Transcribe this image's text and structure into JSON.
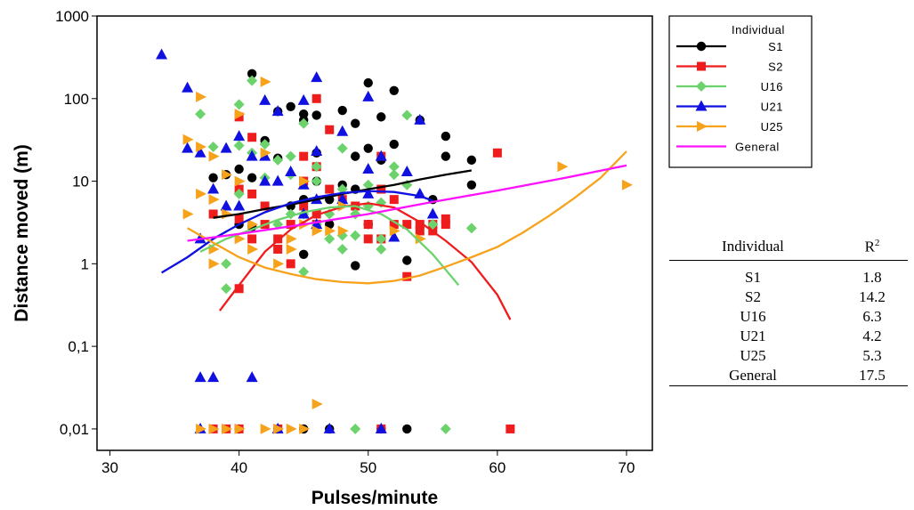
{
  "chart_data": {
    "type": "scatter",
    "xlabel": "Pulses/minute",
    "ylabel": "Distance moved (m)",
    "x_ticks": [
      30,
      40,
      50,
      60,
      70
    ],
    "y_tick_labels": [
      "0,01",
      "0,1",
      "1",
      "10",
      "100",
      "1000"
    ],
    "y_tick_values": [
      0.01,
      0.1,
      1,
      10,
      100,
      1000
    ],
    "xlim": [
      29,
      72
    ],
    "ylim": [
      0.0055,
      1000
    ],
    "y_scale": "log",
    "legend_title": "Individual",
    "legend_placement": "right, outside plot",
    "series": [
      {
        "name": "S1",
        "color": "#000000",
        "marker": "circle",
        "points": [
          [
            38,
            11
          ],
          [
            39,
            12
          ],
          [
            40,
            14
          ],
          [
            40,
            3
          ],
          [
            41,
            200
          ],
          [
            41,
            11
          ],
          [
            41,
            2.8
          ],
          [
            42,
            31
          ],
          [
            43,
            19
          ],
          [
            43,
            70
          ],
          [
            44,
            80
          ],
          [
            44,
            5
          ],
          [
            45,
            65
          ],
          [
            45,
            55
          ],
          [
            45,
            6
          ],
          [
            45,
            1.3
          ],
          [
            46,
            63
          ],
          [
            46,
            22
          ],
          [
            46,
            10
          ],
          [
            47,
            6
          ],
          [
            47,
            3
          ],
          [
            48,
            72
          ],
          [
            48,
            9
          ],
          [
            49,
            50
          ],
          [
            49,
            20
          ],
          [
            49,
            8
          ],
          [
            49,
            0.95
          ],
          [
            50,
            155
          ],
          [
            50,
            25
          ],
          [
            50,
            3
          ],
          [
            51,
            60
          ],
          [
            51,
            18
          ],
          [
            52,
            125
          ],
          [
            52,
            28
          ],
          [
            53,
            1.1
          ],
          [
            54,
            55
          ],
          [
            55,
            6
          ],
          [
            56,
            35
          ],
          [
            56,
            20
          ],
          [
            58,
            18
          ],
          [
            58,
            9
          ],
          [
            40,
            0.01
          ],
          [
            43,
            0.01
          ],
          [
            45,
            0.01
          ],
          [
            47,
            0.01
          ],
          [
            51,
            0.01
          ],
          [
            53,
            0.01
          ]
        ],
        "curve": [
          [
            38,
            3.6
          ],
          [
            40,
            4
          ],
          [
            42,
            4.6
          ],
          [
            44,
            5.2
          ],
          [
            46,
            6
          ],
          [
            48,
            7
          ],
          [
            50,
            8
          ],
          [
            52,
            9
          ],
          [
            54,
            10.5
          ],
          [
            56,
            12
          ],
          [
            58,
            13.5
          ]
        ]
      },
      {
        "name": "S2",
        "color": "#ee1c1c",
        "marker": "square",
        "points": [
          [
            38,
            4
          ],
          [
            40,
            0.5
          ],
          [
            40,
            8
          ],
          [
            40,
            3.5
          ],
          [
            40,
            60
          ],
          [
            41,
            34
          ],
          [
            41,
            7
          ],
          [
            41,
            2
          ],
          [
            42,
            5
          ],
          [
            42,
            3
          ],
          [
            43,
            2
          ],
          [
            43,
            1.5
          ],
          [
            44,
            3
          ],
          [
            44,
            1
          ],
          [
            45,
            10
          ],
          [
            45,
            20
          ],
          [
            45,
            5
          ],
          [
            46,
            15
          ],
          [
            46,
            100
          ],
          [
            46,
            4
          ],
          [
            46,
            3
          ],
          [
            47,
            8
          ],
          [
            47,
            42
          ],
          [
            48,
            6
          ],
          [
            49,
            5
          ],
          [
            50,
            3
          ],
          [
            50,
            2
          ],
          [
            51,
            8
          ],
          [
            51,
            20
          ],
          [
            51,
            2
          ],
          [
            52,
            6
          ],
          [
            52,
            3
          ],
          [
            53,
            3
          ],
          [
            53,
            0.7
          ],
          [
            54,
            3
          ],
          [
            54,
            2.5
          ],
          [
            55,
            3
          ],
          [
            55,
            2.5
          ],
          [
            56,
            3.5
          ],
          [
            56,
            3
          ],
          [
            60,
            22
          ],
          [
            38,
            0.01
          ],
          [
            39,
            0.01
          ],
          [
            40,
            0.01
          ],
          [
            43,
            0.01
          ],
          [
            51,
            0.01
          ],
          [
            61,
            0.01
          ]
        ],
        "curve": [
          [
            38.5,
            0.27
          ],
          [
            40,
            0.55
          ],
          [
            42,
            1.4
          ],
          [
            44,
            2.6
          ],
          [
            46,
            3.9
          ],
          [
            48,
            4.9
          ],
          [
            50,
            5.4
          ],
          [
            52,
            4.8
          ],
          [
            54,
            3.2
          ],
          [
            56,
            1.9
          ],
          [
            58,
            1.05
          ],
          [
            60,
            0.42
          ],
          [
            61,
            0.21
          ]
        ]
      },
      {
        "name": "U16",
        "color": "#6cd36c",
        "marker": "diamond",
        "points": [
          [
            37,
            65
          ],
          [
            38,
            26
          ],
          [
            39,
            1
          ],
          [
            39,
            0.5
          ],
          [
            40,
            85
          ],
          [
            40,
            27
          ],
          [
            40,
            7
          ],
          [
            41,
            22
          ],
          [
            41,
            165
          ],
          [
            42,
            28
          ],
          [
            42,
            11
          ],
          [
            43,
            18
          ],
          [
            43,
            3
          ],
          [
            44,
            20
          ],
          [
            44,
            12
          ],
          [
            44,
            4
          ],
          [
            45,
            50
          ],
          [
            45,
            4
          ],
          [
            45,
            0.8
          ],
          [
            46,
            15
          ],
          [
            46,
            10
          ],
          [
            46,
            3
          ],
          [
            47,
            4
          ],
          [
            47,
            2
          ],
          [
            48,
            25
          ],
          [
            48,
            8
          ],
          [
            48,
            2.2
          ],
          [
            48,
            1.5
          ],
          [
            49,
            4
          ],
          [
            49,
            2.2
          ],
          [
            50,
            9
          ],
          [
            50,
            5
          ],
          [
            51,
            5.5
          ],
          [
            51,
            2
          ],
          [
            51,
            1.5
          ],
          [
            52,
            15
          ],
          [
            52,
            12
          ],
          [
            53,
            63
          ],
          [
            53,
            9
          ],
          [
            55,
            3
          ],
          [
            58,
            2.7
          ],
          [
            49,
            0.01
          ],
          [
            56,
            0.01
          ]
        ],
        "curve": [
          [
            37,
            1.4
          ],
          [
            39,
            2
          ],
          [
            41,
            2.6
          ],
          [
            43,
            3.4
          ],
          [
            45,
            4.2
          ],
          [
            47,
            4.8
          ],
          [
            49,
            5
          ],
          [
            51,
            4
          ],
          [
            53,
            2.6
          ],
          [
            55,
            1.3
          ],
          [
            57,
            0.55
          ]
        ]
      },
      {
        "name": "U21",
        "color": "#1010e0",
        "marker": "triangle",
        "points": [
          [
            34,
            340
          ],
          [
            36,
            135
          ],
          [
            36,
            25
          ],
          [
            37,
            22
          ],
          [
            37,
            2
          ],
          [
            37,
            0.042
          ],
          [
            38,
            0.042
          ],
          [
            38,
            8
          ],
          [
            39,
            25
          ],
          [
            39,
            5
          ],
          [
            40,
            35
          ],
          [
            40,
            5
          ],
          [
            41,
            20
          ],
          [
            41,
            0.042
          ],
          [
            42,
            95
          ],
          [
            42,
            20
          ],
          [
            42,
            10
          ],
          [
            43,
            70
          ],
          [
            43,
            10
          ],
          [
            44,
            13
          ],
          [
            45,
            95
          ],
          [
            45,
            9
          ],
          [
            45,
            4
          ],
          [
            46,
            180
          ],
          [
            46,
            23
          ],
          [
            46,
            6
          ],
          [
            46,
            3
          ],
          [
            48,
            40
          ],
          [
            48,
            6
          ],
          [
            50,
            105
          ],
          [
            50,
            14
          ],
          [
            50,
            7
          ],
          [
            51,
            20
          ],
          [
            52,
            2.1
          ],
          [
            53,
            13
          ],
          [
            54,
            55
          ],
          [
            54,
            7
          ],
          [
            55,
            4
          ],
          [
            37,
            0.01
          ],
          [
            43,
            0.01
          ],
          [
            47,
            0.01
          ],
          [
            51,
            0.01
          ]
        ],
        "curve": [
          [
            34,
            0.78
          ],
          [
            36,
            1.2
          ],
          [
            38,
            2
          ],
          [
            40,
            3
          ],
          [
            42,
            4.2
          ],
          [
            44,
            5.4
          ],
          [
            46,
            6.4
          ],
          [
            48,
            7.2
          ],
          [
            50,
            7.6
          ],
          [
            52,
            7.4
          ],
          [
            54,
            6.6
          ],
          [
            55,
            5.8
          ]
        ]
      },
      {
        "name": "U25",
        "color": "#f7a21b",
        "marker": "triangle-right",
        "points": [
          [
            36,
            32
          ],
          [
            36,
            4
          ],
          [
            37,
            105
          ],
          [
            37,
            26
          ],
          [
            37,
            7
          ],
          [
            38,
            20
          ],
          [
            38,
            6
          ],
          [
            38,
            1.5
          ],
          [
            38,
            1
          ],
          [
            39,
            12
          ],
          [
            39,
            4
          ],
          [
            40,
            65
          ],
          [
            40,
            10
          ],
          [
            40,
            2
          ],
          [
            41,
            3
          ],
          [
            41,
            1.5
          ],
          [
            42,
            160
          ],
          [
            42,
            22
          ],
          [
            43,
            1
          ],
          [
            44,
            1.5
          ],
          [
            44,
            2
          ],
          [
            45,
            10
          ],
          [
            45,
            3
          ],
          [
            46,
            2.5
          ],
          [
            46,
            0.02
          ],
          [
            47,
            2.5
          ],
          [
            48,
            5
          ],
          [
            48,
            2.5
          ],
          [
            52,
            2.5
          ],
          [
            54,
            2
          ],
          [
            65,
            15
          ],
          [
            70,
            9
          ],
          [
            37,
            0.01
          ],
          [
            38,
            0.01
          ],
          [
            39,
            0.01
          ],
          [
            40,
            0.01
          ],
          [
            42,
            0.01
          ],
          [
            43,
            0.01
          ],
          [
            44,
            0.01
          ],
          [
            45,
            0.01
          ]
        ],
        "curve": [
          [
            36,
            2.7
          ],
          [
            38,
            1.8
          ],
          [
            40,
            1.2
          ],
          [
            42,
            0.9
          ],
          [
            44,
            0.75
          ],
          [
            46,
            0.65
          ],
          [
            48,
            0.6
          ],
          [
            50,
            0.58
          ],
          [
            52,
            0.62
          ],
          [
            54,
            0.72
          ],
          [
            56,
            0.92
          ],
          [
            58,
            1.2
          ],
          [
            60,
            1.6
          ],
          [
            62,
            2.4
          ],
          [
            64,
            3.8
          ],
          [
            66,
            6.3
          ],
          [
            68,
            11
          ],
          [
            70,
            23
          ]
        ]
      },
      {
        "name": "General",
        "color": "#ff10ff",
        "marker": "none",
        "points": [],
        "curve": [
          [
            36,
            1.9
          ],
          [
            40,
            2.3
          ],
          [
            45,
            3
          ],
          [
            50,
            4
          ],
          [
            55,
            5.6
          ],
          [
            60,
            7.7
          ],
          [
            65,
            10.8
          ],
          [
            70,
            15.5
          ]
        ]
      }
    ]
  },
  "r2_table": {
    "header_individual": "Individual",
    "header_r2": "R²",
    "rows": [
      {
        "name": "S1",
        "value": "1.8"
      },
      {
        "name": "S2",
        "value": "14.2"
      },
      {
        "name": "U16",
        "value": "6.3"
      },
      {
        "name": "U21",
        "value": "4.2"
      },
      {
        "name": "U25",
        "value": "5.3"
      },
      {
        "name": "General",
        "value": "17.5"
      }
    ]
  }
}
